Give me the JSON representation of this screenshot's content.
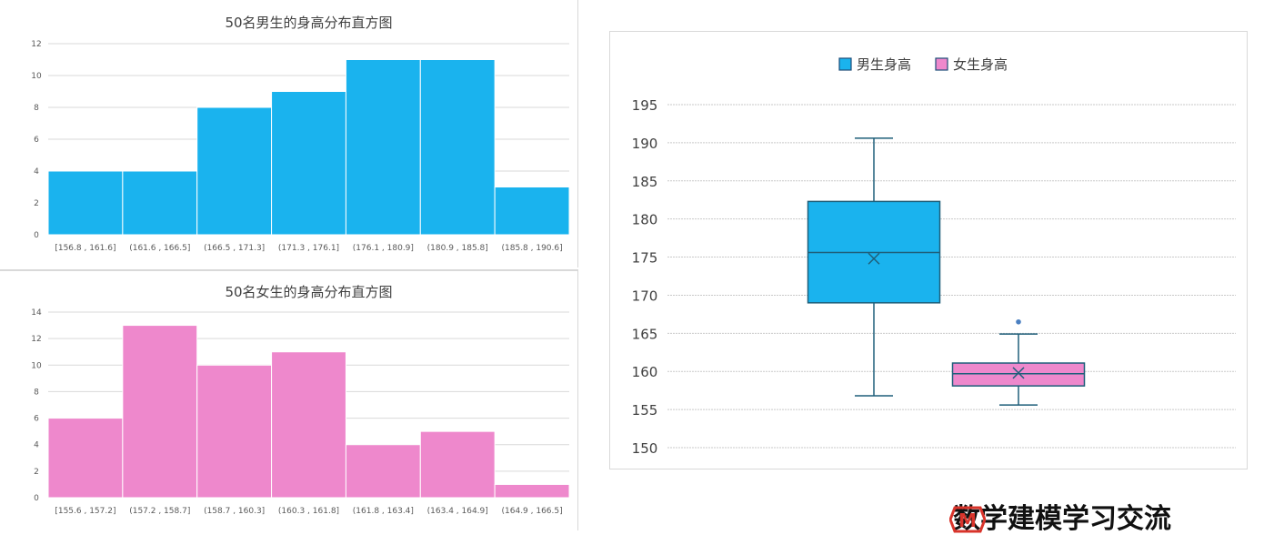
{
  "chart_data": [
    {
      "type": "bar",
      "title": "50名男生的身高分布直方图",
      "categories": [
        "[156.8 , 161.6]",
        "(161.6 , 166.5]",
        "(166.5 , 171.3]",
        "(171.3 , 176.1]",
        "(176.1 , 180.9]",
        "(180.9 , 185.8]",
        "(185.8 , 190.6]"
      ],
      "values": [
        4,
        4,
        8,
        9,
        11,
        11,
        3
      ],
      "yticks": [
        "0",
        "2",
        "4",
        "6",
        "8",
        "10",
        "12"
      ],
      "ylim": [
        0,
        12
      ],
      "color": "#1ab3ee",
      "grid": true
    },
    {
      "type": "bar",
      "title": "50名女生的身高分布直方图",
      "categories": [
        "[155.6 , 157.2]",
        "(157.2 , 158.7]",
        "(158.7 , 160.3]",
        "(160.3 , 161.8]",
        "(161.8 , 163.4]",
        "(163.4 , 164.9]",
        "(164.9 , 166.5]"
      ],
      "values": [
        6,
        13,
        10,
        11,
        4,
        5,
        1
      ],
      "yticks": [
        "0",
        "2",
        "4",
        "6",
        "8",
        "10",
        "12",
        "14"
      ],
      "ylim": [
        0,
        14
      ],
      "color": "#ee88cc",
      "grid": true
    },
    {
      "type": "box",
      "legend": [
        "男生身高",
        "女生身高"
      ],
      "legend_position": "top",
      "yticks": [
        "150",
        "155",
        "160",
        "165",
        "170",
        "175",
        "180",
        "185",
        "190",
        "195"
      ],
      "ylim": [
        150,
        195
      ],
      "grid": true,
      "series": [
        {
          "name": "男生身高",
          "min": 156.8,
          "q1": 169.0,
          "median": 175.6,
          "q3": 182.3,
          "max": 190.6,
          "mean": 174.8,
          "outliers": [],
          "color": "#1ab3ee"
        },
        {
          "name": "女生身高",
          "min": 155.6,
          "q1": 158.1,
          "median": 159.7,
          "q3": 161.1,
          "max": 164.9,
          "mean": 159.8,
          "outliers": [
            166.5
          ],
          "color": "#ee88cc"
        }
      ]
    }
  ],
  "watermark": {
    "logo_letter": "M",
    "text": "数学建模学习交流"
  }
}
